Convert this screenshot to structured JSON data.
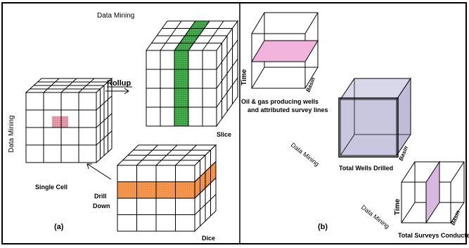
{
  "panel_a": {
    "caption": "(a)",
    "watermark_top": "Data Mining",
    "watermark_side": "Data Mining",
    "label_rollup": "Rollup",
    "label_slice": "Slice",
    "label_single_cell": "Single Cell",
    "label_drill_line1": "Drill",
    "label_drill_line2": "Down",
    "label_dice": "Dice"
  },
  "panel_b": {
    "caption": "(b)",
    "axis_time": "Time",
    "axis_basin": "Basin",
    "cube1_line1": "Oil & gas producing wells",
    "cube1_line2": "and attributed survey lines",
    "cube2_label": "Total Wells Drilled",
    "cube3_label": "Total Surveys Conducted",
    "watermark_1": "Data Mining",
    "watermark_2": "Data Mining"
  },
  "colors": {
    "slice_fill": "#2f9e3a",
    "dice_fill": "#f08a3c",
    "cell_fill": "#e8a0b0",
    "plane_pink": "#f2b3dd",
    "plane_lavender": "#c9c6e0",
    "plane_mauve": "#d9b8e0"
  }
}
